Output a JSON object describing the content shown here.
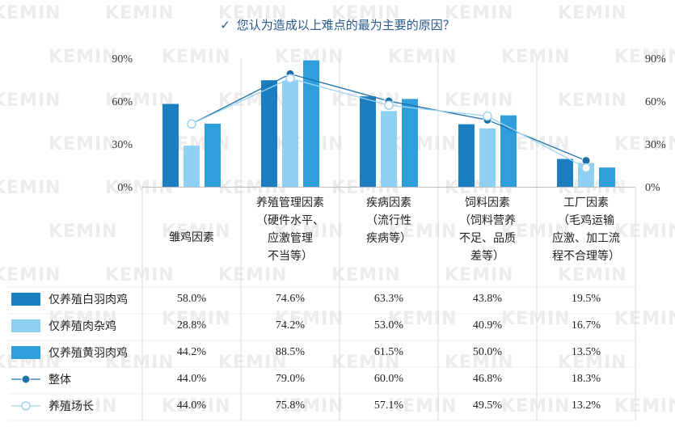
{
  "title": "您认为造成以上难点的最为主要的原因？",
  "check_icon": "check-icon",
  "watermark": "KEMIN",
  "colors": {
    "white_feather": "#1a7ec1",
    "hybrid": "#8fd0f3",
    "yellow_feather": "#2e9fdb",
    "overall": "#1b6fa8",
    "farm_manager": "#9fd2ef",
    "grid": "#d9d9d9"
  },
  "chart_data": {
    "type": "bar",
    "title": "您认为造成以上难点的最为主要的原因？",
    "categories": [
      [
        "雏鸡因素"
      ],
      [
        "养殖管理因素",
        "（硬件水平、",
        "应激管理",
        "不当等）"
      ],
      [
        "疾病因素",
        "（流行性",
        "疾病等）"
      ],
      [
        "饲料因素",
        "（饲料营养",
        "不足、品质",
        "差等）"
      ],
      [
        "工厂因素",
        "（毛鸡运输",
        "应激、加工流",
        "程不合理等）"
      ]
    ],
    "ylim": [
      0,
      90
    ],
    "y_ticks": [
      "0%",
      "30%",
      "60%",
      "90%"
    ],
    "y_tick_values": [
      0,
      30,
      60,
      90
    ],
    "grid": "vertical category separators",
    "legend": "table-left",
    "series": [
      {
        "name": "仅养殖白羽肉鸡",
        "kind": "bar",
        "values": [
          58.0,
          74.6,
          63.3,
          43.8,
          19.5
        ],
        "labels": [
          "58.0%",
          "74.6%",
          "63.3%",
          "43.8%",
          "19.5%"
        ]
      },
      {
        "name": "仅养殖肉杂鸡",
        "kind": "bar",
        "values": [
          28.8,
          74.2,
          53.0,
          40.9,
          16.7
        ],
        "labels": [
          "28.8%",
          "74.2%",
          "53.0%",
          "40.9%",
          "16.7%"
        ]
      },
      {
        "name": "仅养殖黄羽肉鸡",
        "kind": "bar",
        "values": [
          44.2,
          88.5,
          61.5,
          50.0,
          13.5
        ],
        "labels": [
          "44.2%",
          "88.5%",
          "61.5%",
          "50.0%",
          "13.5%"
        ]
      },
      {
        "name": "整体",
        "kind": "line-filled",
        "values": [
          44.0,
          79.0,
          60.0,
          46.8,
          18.3
        ],
        "labels": [
          "44.0%",
          "79.0%",
          "60.0%",
          "46.8%",
          "18.3%"
        ]
      },
      {
        "name": "养殖场长",
        "kind": "line-hollow",
        "values": [
          44.0,
          75.8,
          57.1,
          49.5,
          13.2
        ],
        "labels": [
          "44.0%",
          "75.8%",
          "57.1%",
          "49.5%",
          "13.2%"
        ]
      }
    ]
  }
}
